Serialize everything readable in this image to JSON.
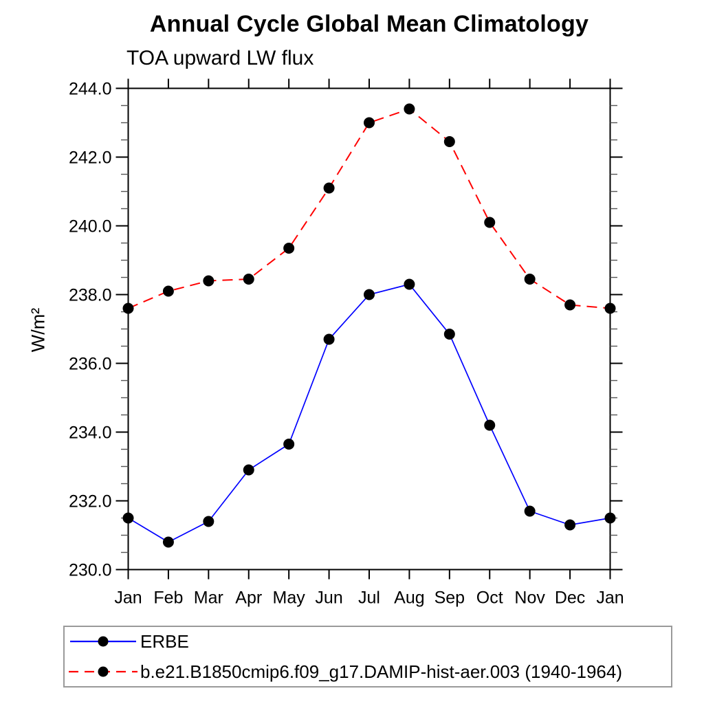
{
  "chart_data": {
    "type": "line",
    "title": "Annual Cycle Global Mean Climatology",
    "subtitle": "TOA upward LW flux",
    "ylabel": "W/m²",
    "categories": [
      "Jan",
      "Feb",
      "Mar",
      "Apr",
      "May",
      "Jun",
      "Jul",
      "Aug",
      "Sep",
      "Oct",
      "Nov",
      "Dec",
      "Jan"
    ],
    "ylim": [
      230.0,
      244.0
    ],
    "y_major_step": 2.0,
    "y_minor_step": 0.5,
    "y_tick_labels": [
      "230.0",
      "232.0",
      "234.0",
      "236.0",
      "238.0",
      "240.0",
      "242.0",
      "244.0"
    ],
    "grid": false,
    "legend_position": "bottom-left-box",
    "marker_color": "#000000",
    "series": [
      {
        "name": "ERBE",
        "color": "#0000ff",
        "style": "solid",
        "marker": "filled-circle",
        "values": [
          231.5,
          230.8,
          231.4,
          232.9,
          233.65,
          236.7,
          238.0,
          238.3,
          236.85,
          234.2,
          231.7,
          231.3,
          231.5
        ]
      },
      {
        "name": "b.e21.B1850cmip6.f09_g17.DAMIP-hist-aer.003 (1940-1964)",
        "color": "#ff0000",
        "style": "dashed",
        "marker": "filled-circle",
        "values": [
          237.6,
          238.1,
          238.4,
          238.45,
          239.35,
          241.1,
          243.0,
          243.4,
          242.45,
          240.1,
          238.45,
          237.7,
          237.6
        ]
      }
    ]
  }
}
